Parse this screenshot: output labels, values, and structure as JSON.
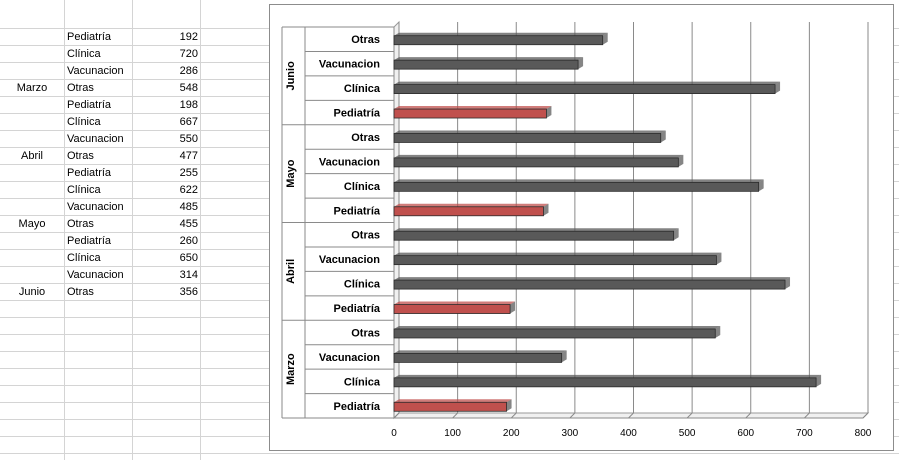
{
  "table": {
    "rows": [
      {
        "month": "",
        "category": "Pediatría",
        "value": "192"
      },
      {
        "month": "",
        "category": "Clínica",
        "value": "720"
      },
      {
        "month": "",
        "category": "Vacunacion",
        "value": "286"
      },
      {
        "month": "Marzo",
        "category": "Otras",
        "value": "548"
      },
      {
        "month": "",
        "category": "Pediatría",
        "value": "198"
      },
      {
        "month": "",
        "category": "Clínica",
        "value": "667"
      },
      {
        "month": "",
        "category": "Vacunacion",
        "value": "550"
      },
      {
        "month": "Abril",
        "category": "Otras",
        "value": "477"
      },
      {
        "month": "",
        "category": "Pediatría",
        "value": "255"
      },
      {
        "month": "",
        "category": "Clínica",
        "value": "622"
      },
      {
        "month": "",
        "category": "Vacunacion",
        "value": "485"
      },
      {
        "month": "Mayo",
        "category": "Otras",
        "value": "455"
      },
      {
        "month": "",
        "category": "Pediatría",
        "value": "260"
      },
      {
        "month": "",
        "category": "Clínica",
        "value": "650"
      },
      {
        "month": "",
        "category": "Vacunacion",
        "value": "314"
      },
      {
        "month": "Junio",
        "category": "Otras",
        "value": "356"
      }
    ]
  },
  "chart_data": {
    "type": "bar",
    "orientation": "horizontal",
    "groups": [
      {
        "name": "Marzo",
        "bars": [
          {
            "category": "Pediatría",
            "value": 192
          },
          {
            "category": "Clínica",
            "value": 720
          },
          {
            "category": "Vacunacion",
            "value": 286
          },
          {
            "category": "Otras",
            "value": 548
          }
        ]
      },
      {
        "name": "Abril",
        "bars": [
          {
            "category": "Pediatría",
            "value": 198
          },
          {
            "category": "Clínica",
            "value": 667
          },
          {
            "category": "Vacunacion",
            "value": 550
          },
          {
            "category": "Otras",
            "value": 477
          }
        ]
      },
      {
        "name": "Mayo",
        "bars": [
          {
            "category": "Pediatría",
            "value": 255
          },
          {
            "category": "Clínica",
            "value": 622
          },
          {
            "category": "Vacunacion",
            "value": 485
          },
          {
            "category": "Otras",
            "value": 455
          }
        ]
      },
      {
        "name": "Junio",
        "bars": [
          {
            "category": "Pediatría",
            "value": 260
          },
          {
            "category": "Clínica",
            "value": 650
          },
          {
            "category": "Vacunacion",
            "value": 314
          },
          {
            "category": "Otras",
            "value": 356
          }
        ]
      }
    ],
    "xlim": [
      0,
      800
    ],
    "xticks": [
      0,
      100,
      200,
      300,
      400,
      500,
      600,
      700,
      800
    ],
    "grid": true,
    "legend": "none",
    "colors": {
      "highlight": "#c0504d",
      "default": "#595959"
    },
    "highlight_category": "Pediatría"
  }
}
